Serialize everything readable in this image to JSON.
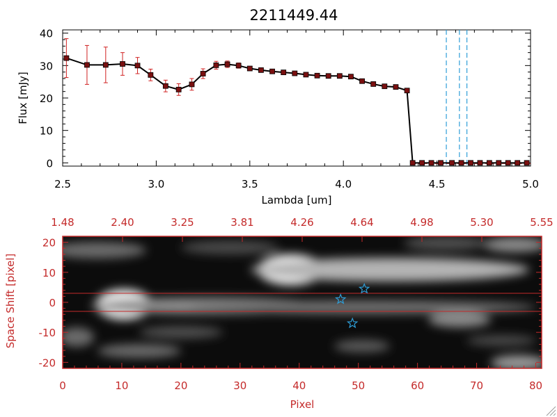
{
  "chart_data": [
    {
      "type": "line",
      "title": "2211449.44",
      "xlabel": "Lambda [um]",
      "ylabel": "Flux [mJy]",
      "xlim": [
        2.5,
        5.0
      ],
      "ylim": [
        -1,
        41
      ],
      "xticks": [
        "2.5",
        "3.0",
        "3.5",
        "4.0",
        "4.5",
        "5.0"
      ],
      "yticks": [
        "0",
        "10",
        "20",
        "30",
        "40"
      ],
      "series": [
        {
          "name": "flux",
          "x": [
            2.52,
            2.63,
            2.73,
            2.82,
            2.9,
            2.97,
            3.05,
            3.12,
            3.19,
            3.25,
            3.32,
            3.38,
            3.44,
            3.5,
            3.56,
            3.62,
            3.68,
            3.74,
            3.8,
            3.86,
            3.92,
            3.98,
            4.04,
            4.1,
            4.16,
            4.22,
            4.28,
            4.34,
            4.37,
            4.42,
            4.47,
            4.52,
            4.58,
            4.63,
            4.68,
            4.73,
            4.78,
            4.83,
            4.88,
            4.93,
            4.98
          ],
          "y": [
            32.3,
            30.2,
            30.2,
            30.5,
            30.0,
            27.1,
            23.7,
            22.6,
            24.2,
            27.5,
            30.1,
            30.4,
            30.0,
            29.1,
            28.6,
            28.2,
            27.9,
            27.6,
            27.2,
            26.9,
            26.8,
            26.8,
            26.6,
            25.2,
            24.3,
            23.6,
            23.4,
            22.3,
            0,
            0,
            0,
            0,
            0,
            0,
            0,
            0,
            0,
            0,
            0,
            0,
            0
          ],
          "yerr": [
            6.0,
            6.0,
            5.5,
            3.5,
            2.5,
            1.8,
            1.8,
            1.8,
            1.8,
            1.5,
            1.2,
            1.0,
            0.8,
            0.6,
            0.5,
            0.5,
            0.5,
            0.5,
            0.5,
            0.5,
            0.5,
            0.5,
            0.5,
            0.5,
            0.5,
            0.5,
            0.5,
            0.6,
            0,
            0,
            0,
            0,
            0,
            0,
            0,
            0,
            0,
            0,
            0,
            0,
            0
          ]
        }
      ],
      "vlines": [
        4.55,
        4.62,
        4.66
      ]
    },
    {
      "type": "heatmap",
      "xlabel": "Pixel",
      "ylabel": "Space Shift [pixel]",
      "xlim": [
        0,
        81
      ],
      "ylim": [
        -22,
        22
      ],
      "xticks": [
        "0",
        "10",
        "20",
        "30",
        "40",
        "50",
        "60",
        "70",
        "80"
      ],
      "yticks": [
        "-20",
        "-10",
        "0",
        "10",
        "20"
      ],
      "top_ticks": [
        "1.48",
        "2.40",
        "3.25",
        "3.81",
        "4.26",
        "4.64",
        "4.98",
        "5.30",
        "5.55"
      ],
      "extraction_lines": [
        3,
        -3
      ],
      "stars": [
        {
          "x": 47,
          "y": 1
        },
        {
          "x": 51,
          "y": 4.5
        },
        {
          "x": 49,
          "y": -7
        }
      ]
    }
  ],
  "colors": {
    "data_line": "#000000",
    "marker": "#7a1010",
    "errorbar": "#d02020",
    "vline": "#2e9ed8",
    "panel2_axis": "#c42a2a",
    "star": "#2e9ed8"
  }
}
